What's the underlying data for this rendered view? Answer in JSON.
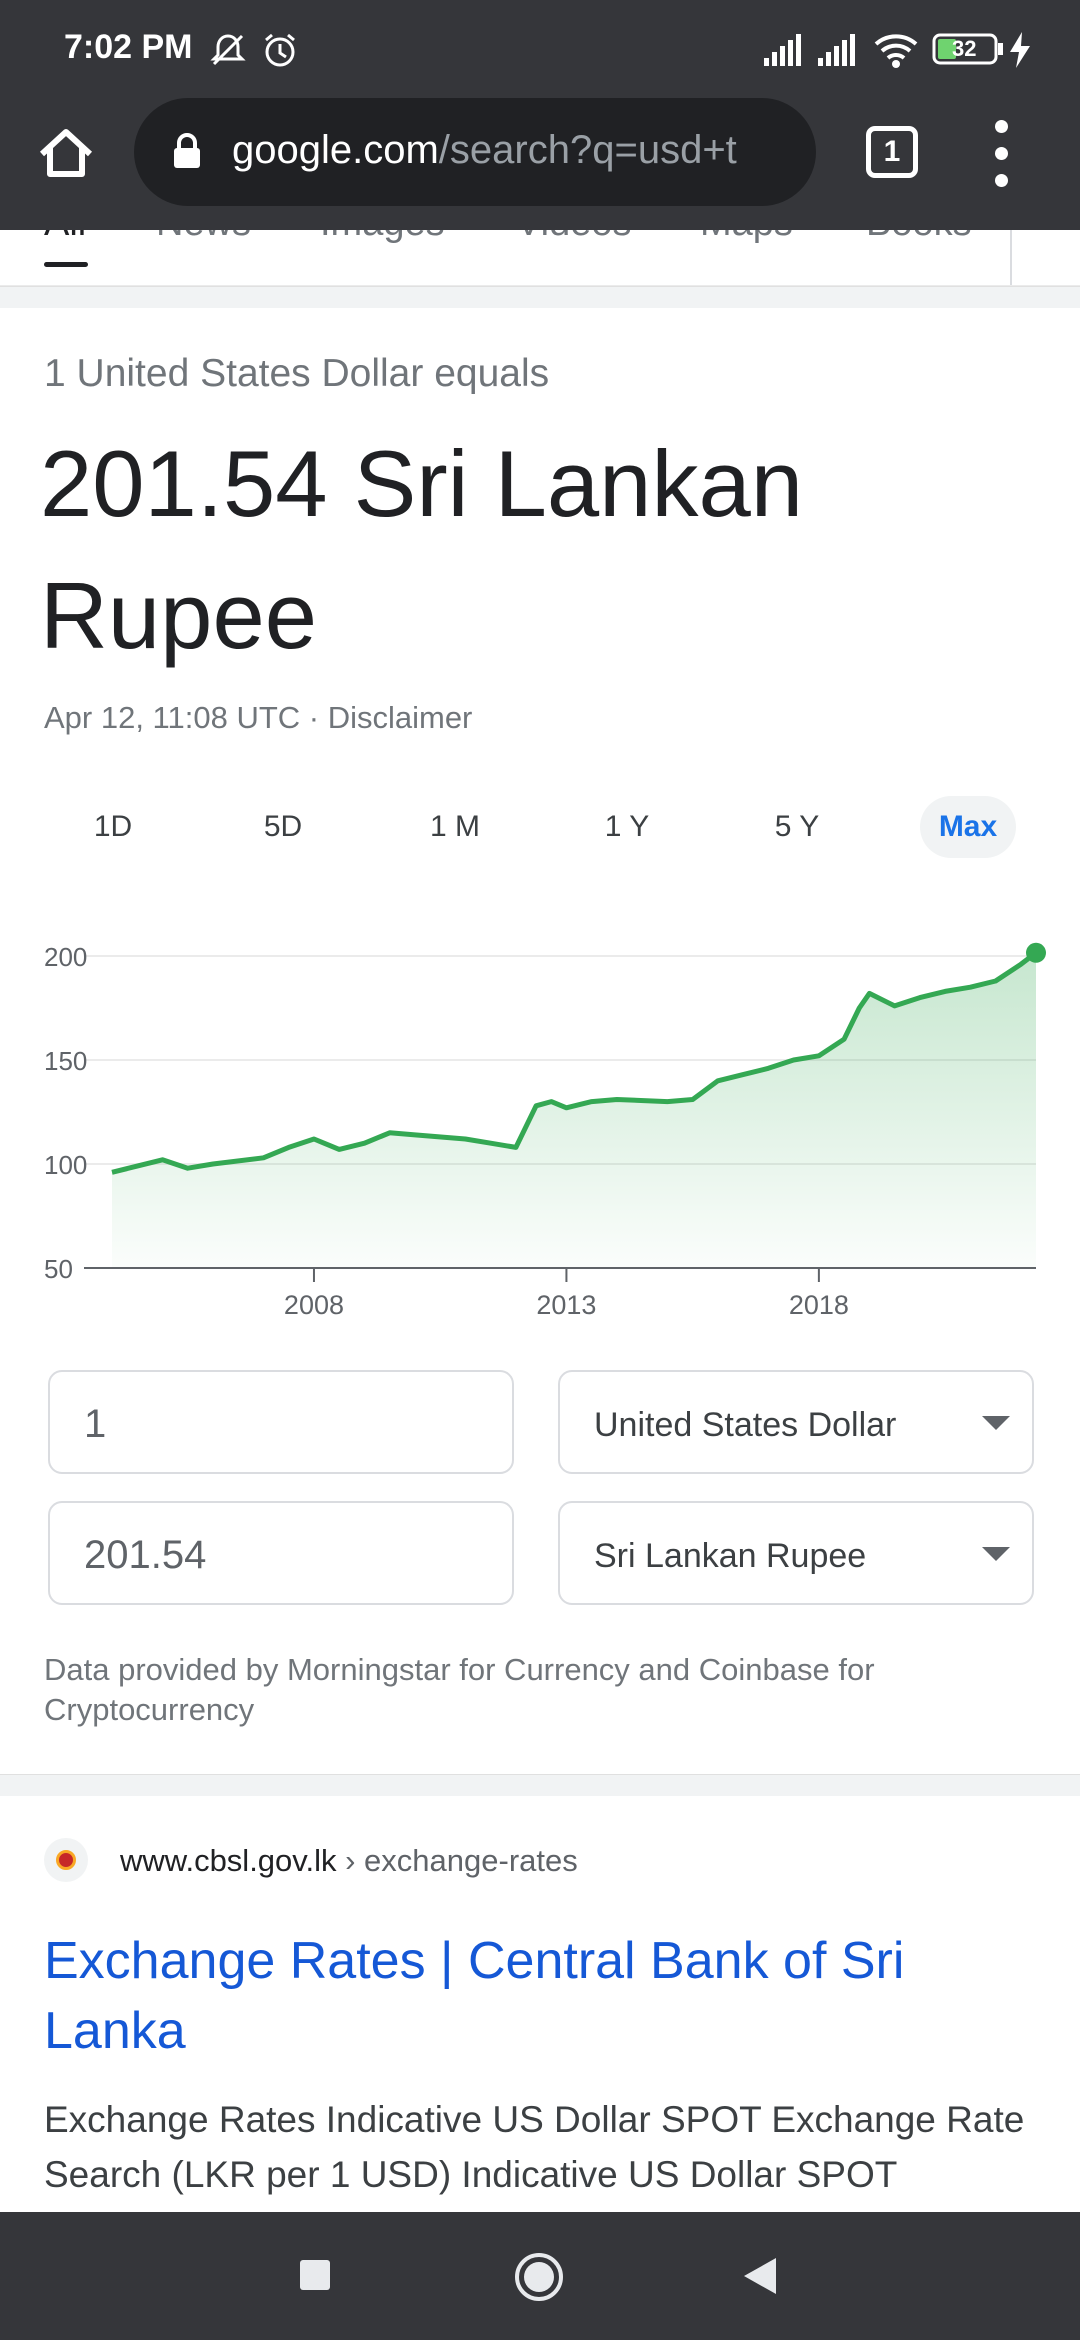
{
  "status_bar": {
    "time": "7:02 PM",
    "battery": "32"
  },
  "browser": {
    "url_host": "google.com",
    "url_path": "/search?q=usd+t",
    "tab_count": "1"
  },
  "search_tabs": [
    "All",
    "News",
    "Images",
    "Videos",
    "Maps",
    "Books"
  ],
  "converter": {
    "equals_text": "1 United States Dollar equals",
    "result_text": "201.54 Sri Lankan Rupee",
    "datetime": "Apr 12, 11:08 UTC · Disclaimer",
    "ranges": [
      "1D",
      "5D",
      "1 M",
      "1 Y",
      "5 Y",
      "Max"
    ],
    "active_range": "Max",
    "from_amount": "1",
    "from_currency": "United States Dollar",
    "to_amount": "201.54",
    "to_currency": "Sri Lankan Rupee",
    "provider_text": "Data provided by Morningstar for Currency and Coinbase for Cryptocurrency"
  },
  "chart_data": {
    "type": "area",
    "x_ticks": [
      "2008",
      "2013",
      "2018"
    ],
    "y_ticks": [
      200,
      150,
      100,
      50
    ],
    "ylim": [
      50,
      200
    ],
    "xlim": [
      2004,
      2022.3
    ],
    "x": [
      2004.0,
      2004.5,
      2005.0,
      2005.5,
      2006.0,
      2007.0,
      2007.5,
      2008.0,
      2008.5,
      2009.0,
      2009.5,
      2010.0,
      2011.0,
      2011.5,
      2012.0,
      2012.4,
      2012.7,
      2013.0,
      2013.5,
      2014.0,
      2015.0,
      2015.5,
      2016.0,
      2016.5,
      2017.0,
      2017.5,
      2018.0,
      2018.5,
      2018.8,
      2019.0,
      2019.5,
      2020.0,
      2020.5,
      2021.0,
      2021.5,
      2022.0,
      2022.3
    ],
    "y": [
      96,
      99,
      102,
      98,
      100,
      103,
      108,
      112,
      107,
      110,
      115,
      114,
      112,
      110,
      108,
      128,
      130,
      127,
      130,
      131,
      130,
      131,
      140,
      143,
      146,
      150,
      152,
      160,
      175,
      182,
      176,
      180,
      183,
      185,
      188,
      196,
      201.54
    ],
    "line_color": "#34a853",
    "fill_color": "#34a853",
    "grid": true
  },
  "result": {
    "site": "www.cbsl.gov.lk",
    "path": "› exchange-rates",
    "title": "Exchange Rates | Central Bank of Sri Lanka",
    "snippet": "Exchange Rates Indicative US Dollar SPOT Exchange Rate Search (LKR per 1 USD) Indicative US Dollar SPOT"
  },
  "icons": {
    "status": [
      "mute-bell-icon",
      "alarm-icon",
      "signal-icon",
      "wifi-icon",
      "battery-icon",
      "charging-icon"
    ],
    "toolbar": [
      "home-icon",
      "lock-icon",
      "tabs-icon",
      "menu-icon"
    ],
    "nav": [
      "recents-icon",
      "home-nav-icon",
      "back-icon"
    ]
  }
}
